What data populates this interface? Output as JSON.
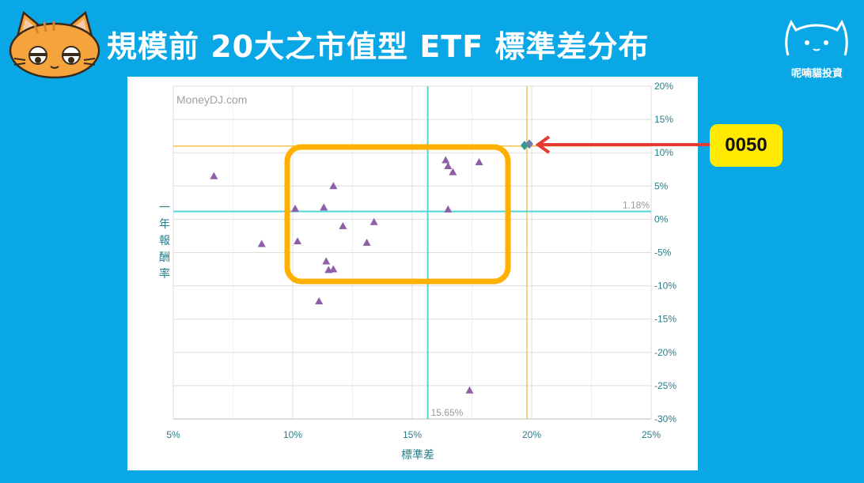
{
  "header": {
    "title": "規模前 20大之市值型 ETF 標準差分布",
    "brand_name": "呢喃貓投資"
  },
  "callout": {
    "label": "0050"
  },
  "colors": {
    "background": "#0aa7e6",
    "marker": "#8e5ea8",
    "highlight_box": "#ffb000",
    "crosshair": "#4fd6d6",
    "reference_line": "#f2c14e",
    "arrow": "#e53935",
    "callout_bg": "#ffea00"
  },
  "chart_data": {
    "type": "scatter",
    "watermark": "MoneyDJ.com",
    "xlabel": "標準差",
    "ylabel": "一年報酬率",
    "xlim": [
      5,
      25
    ],
    "ylim": [
      -30,
      20
    ],
    "x_ticks": [
      "5%",
      "10%",
      "15%",
      "20%",
      "25%"
    ],
    "y_ticks": [
      "20%",
      "15%",
      "10%",
      "5%",
      "0%",
      "-5%",
      "-10%",
      "-15%",
      "-20%",
      "-25%",
      "-30%"
    ],
    "crosshair": {
      "x": 15.65,
      "y": 1.18,
      "x_label": "15.65%",
      "y_label": "1.18%"
    },
    "reference": {
      "x": 19.8,
      "y": 11.0
    },
    "grid": true,
    "points": [
      {
        "x": 6.7,
        "y": 6.5
      },
      {
        "x": 8.7,
        "y": -3.7
      },
      {
        "x": 10.1,
        "y": 1.6
      },
      {
        "x": 10.2,
        "y": -3.3
      },
      {
        "x": 11.1,
        "y": -12.3
      },
      {
        "x": 11.3,
        "y": 1.8
      },
      {
        "x": 11.4,
        "y": -6.3
      },
      {
        "x": 11.5,
        "y": -7.6
      },
      {
        "x": 11.7,
        "y": -7.5
      },
      {
        "x": 11.7,
        "y": 5.0
      },
      {
        "x": 12.1,
        "y": -1.0
      },
      {
        "x": 13.1,
        "y": -3.5
      },
      {
        "x": 13.4,
        "y": -0.4
      },
      {
        "x": 16.4,
        "y": 8.9
      },
      {
        "x": 16.5,
        "y": 1.5
      },
      {
        "x": 16.5,
        "y": 8.0
      },
      {
        "x": 16.7,
        "y": 7.1
      },
      {
        "x": 17.4,
        "y": -25.7
      },
      {
        "x": 17.8,
        "y": 8.6
      }
    ],
    "highlight_points": [
      {
        "x": 19.7,
        "y": 11.1
      },
      {
        "x": 19.9,
        "y": 11.3
      }
    ]
  }
}
